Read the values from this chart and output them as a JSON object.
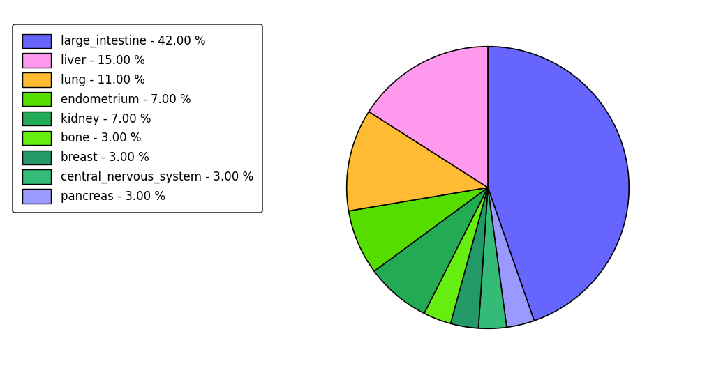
{
  "labels": [
    "large_intestine",
    "liver",
    "lung",
    "endometrium",
    "kidney",
    "bone",
    "breast",
    "central_nervous_system",
    "pancreas"
  ],
  "values": [
    42,
    15,
    11,
    7,
    7,
    3,
    3,
    3,
    3
  ],
  "colors": [
    "#6666ff",
    "#ff99ee",
    "#ffbb33",
    "#55dd00",
    "#22aa55",
    "#66ee11",
    "#229966",
    "#33bb77",
    "#9999ff"
  ],
  "legend_labels": [
    "large_intestine - 42.00 %",
    "liver - 15.00 %",
    "lung - 11.00 %",
    "endometrium - 7.00 %",
    "kidney - 7.00 %",
    "bone - 3.00 %",
    "breast - 3.00 %",
    "central_nervous_system - 3.00 %",
    "pancreas - 3.00 %"
  ],
  "pie_order_indices": [
    0,
    8,
    7,
    6,
    5,
    4,
    3,
    2,
    1
  ],
  "startangle": 90,
  "figsize": [
    10.13,
    5.38
  ],
  "dpi": 100
}
